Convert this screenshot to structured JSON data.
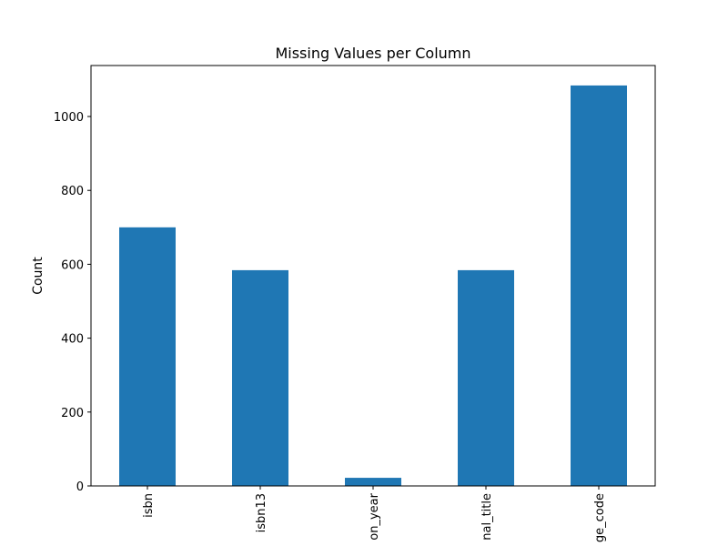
{
  "chart_data": {
    "type": "bar",
    "title": "Missing Values per Column",
    "xlabel": "",
    "ylabel": "Count",
    "categories": [
      "isbn",
      "isbn13",
      "on_year",
      "nal_title",
      "ge_code"
    ],
    "values": [
      700,
      584,
      22,
      584,
      1084
    ],
    "ylim": [
      0,
      1138
    ],
    "yticks": [
      0,
      200,
      400,
      600,
      800,
      1000
    ],
    "bar_color": "#1f77b4",
    "grid": false,
    "legend": "none"
  }
}
